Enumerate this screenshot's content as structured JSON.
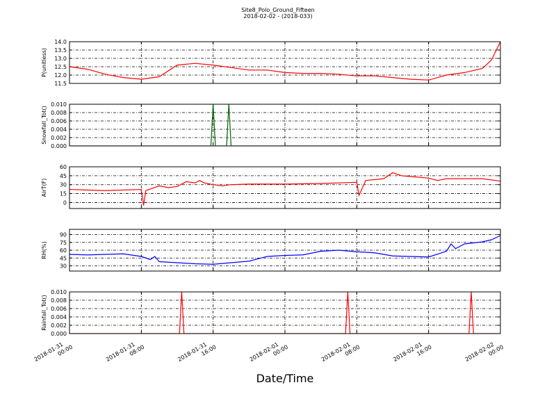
{
  "title": "Site8_Polo_Ground_Fifteen",
  "subtitle": "2018-02-02 - (2018-033)",
  "xlabel": "Date/Time",
  "xlim": [
    "2018-01-31 00:00",
    "2018-02-02 00:00"
  ],
  "xticks": [
    "2018-01-31 00:00",
    "2018-01-31 08:00",
    "2018-01-31 16:00",
    "2018-02-01 00:00",
    "2018-02-01 08:00",
    "2018-02-01 16:00",
    "2018-02-02 00:00"
  ],
  "chart_data": [
    {
      "type": "line",
      "ylabel": "P(unitless)",
      "ylim": [
        11.5,
        14
      ],
      "grid": true,
      "yticks": [
        11.5,
        {
          "value": 12,
          "label": "12.0"
        },
        12.5,
        {
          "value": 13,
          "label": "13.0"
        },
        13.5,
        {
          "value": 14,
          "label": "14.0"
        }
      ],
      "x": [
        "2018-01-31 00:00",
        "2018-01-31 02:00",
        "2018-01-31 04:00",
        "2018-01-31 06:00",
        "2018-01-31 08:00",
        "2018-01-31 10:00",
        "2018-01-31 12:00",
        "2018-01-31 14:00",
        "2018-01-31 16:00",
        "2018-01-31 18:00",
        "2018-01-31 20:00",
        "2018-01-31 22:00",
        "2018-02-01 00:00",
        "2018-02-01 02:00",
        "2018-02-01 04:00",
        "2018-02-01 06:00",
        "2018-02-01 08:00",
        "2018-02-01 10:00",
        "2018-02-01 12:00",
        "2018-02-01 14:00",
        "2018-02-01 16:00",
        "2018-02-01 18:00",
        "2018-02-01 20:00",
        "2018-02-01 22:00",
        "2018-02-01 23:00",
        "2018-02-02 00:00"
      ],
      "series": [
        {
          "color": "#ff0000",
          "values": [
            12.5,
            12.35,
            12.05,
            11.85,
            11.75,
            11.9,
            12.6,
            12.7,
            12.6,
            12.45,
            12.3,
            12.3,
            12.15,
            12.1,
            12.1,
            12.05,
            11.95,
            11.95,
            11.85,
            11.75,
            11.7,
            12.0,
            12.15,
            12.4,
            12.9,
            14.0
          ]
        }
      ]
    },
    {
      "type": "line",
      "ylabel": "Snowfall_Tot()",
      "ylim": [
        0,
        0.01
      ],
      "grid": true,
      "yticks": [
        {
          "value": 0,
          "label": "0.000"
        },
        0.002,
        0.004,
        0.006,
        0.008,
        {
          "value": 0.01,
          "label": "0.010"
        }
      ],
      "x": [
        "2018-01-31 00:00",
        "2018-01-31 15:45",
        "2018-01-31 16:00",
        "2018-01-31 16:15",
        "2018-01-31 17:30",
        "2018-01-31 17:45",
        "2018-01-31 18:00",
        "2018-02-02 00:00"
      ],
      "series": [
        {
          "color": "#006400",
          "values": [
            0,
            0,
            0.01,
            0,
            0,
            0.01,
            0,
            0
          ]
        }
      ]
    },
    {
      "type": "line",
      "ylabel": "AirT(F)",
      "ylim": [
        -10,
        60
      ],
      "grid": true,
      "yticks": [
        0,
        15,
        30,
        45,
        60
      ],
      "x": [
        "2018-01-31 00:00",
        "2018-01-31 04:00",
        "2018-01-31 08:00",
        "2018-01-31 08:15",
        "2018-01-31 08:30",
        "2018-01-31 10:00",
        "2018-01-31 11:00",
        "2018-01-31 12:00",
        "2018-01-31 13:00",
        "2018-01-31 14:00",
        "2018-01-31 14:30",
        "2018-01-31 15:00",
        "2018-01-31 16:00",
        "2018-01-31 17:00",
        "2018-01-31 18:00",
        "2018-01-31 20:00",
        "2018-02-01 00:00",
        "2018-02-01 04:00",
        "2018-02-01 08:00",
        "2018-02-01 08:15",
        "2018-02-01 09:00",
        "2018-02-01 11:00",
        "2018-02-01 12:00",
        "2018-02-01 13:00",
        "2018-02-01 16:00",
        "2018-02-01 17:00",
        "2018-02-01 18:00",
        "2018-02-01 20:00",
        "2018-02-01 22:00",
        "2018-02-02 00:00"
      ],
      "series": [
        {
          "color": "#ff0000",
          "values": [
            22,
            20,
            22,
            -5,
            20,
            28,
            25,
            27,
            35,
            33,
            37,
            33,
            30,
            28,
            30,
            31,
            31,
            32,
            34,
            12,
            37,
            40,
            50,
            45,
            41,
            37,
            40,
            40,
            40,
            36
          ]
        }
      ]
    },
    {
      "type": "line",
      "ylabel": "RH(%)",
      "ylim": [
        20,
        100
      ],
      "grid": true,
      "yticks": [
        30,
        45,
        60,
        75,
        90
      ],
      "x": [
        "2018-01-31 00:00",
        "2018-01-31 02:00",
        "2018-01-31 04:00",
        "2018-01-31 06:00",
        "2018-01-31 08:00",
        "2018-01-31 09:00",
        "2018-01-31 09:30",
        "2018-01-31 10:00",
        "2018-01-31 12:00",
        "2018-01-31 14:00",
        "2018-01-31 16:00",
        "2018-01-31 18:00",
        "2018-01-31 20:00",
        "2018-01-31 22:00",
        "2018-02-01 00:00",
        "2018-02-01 02:00",
        "2018-02-01 04:00",
        "2018-02-01 06:00",
        "2018-02-01 08:00",
        "2018-02-01 10:00",
        "2018-02-01 12:00",
        "2018-02-01 14:00",
        "2018-02-01 16:00",
        "2018-02-01 18:00",
        "2018-02-01 18:30",
        "2018-02-01 19:00",
        "2018-02-01 20:00",
        "2018-02-01 22:00",
        "2018-02-01 23:00",
        "2018-02-02 00:00"
      ],
      "series": [
        {
          "color": "#0000ff",
          "values": [
            52,
            51,
            52,
            53,
            48,
            42,
            48,
            38,
            36,
            34,
            33,
            36,
            39,
            48,
            50,
            51,
            58,
            60,
            57,
            55,
            49,
            48,
            47,
            58,
            72,
            63,
            72,
            76,
            80,
            88
          ]
        }
      ]
    },
    {
      "type": "line",
      "ylabel": "Rainfall_Tot()",
      "ylim": [
        0,
        0.01
      ],
      "grid": true,
      "yticks": [
        {
          "value": 0,
          "label": "0.000"
        },
        0.002,
        0.004,
        0.006,
        0.008,
        {
          "value": 0.01,
          "label": "0.010"
        }
      ],
      "x": [
        "2018-01-31 00:00",
        "2018-01-31 12:15",
        "2018-01-31 12:30",
        "2018-01-31 12:45",
        "2018-02-01 06:45",
        "2018-02-01 07:00",
        "2018-02-01 07:15",
        "2018-02-01 20:30",
        "2018-02-01 20:45",
        "2018-02-01 21:00",
        "2018-02-02 00:00"
      ],
      "series": [
        {
          "color": "#ff0000",
          "values": [
            0,
            0,
            0.01,
            0,
            0,
            0.01,
            0,
            0,
            0.01,
            0,
            0
          ]
        }
      ]
    }
  ]
}
